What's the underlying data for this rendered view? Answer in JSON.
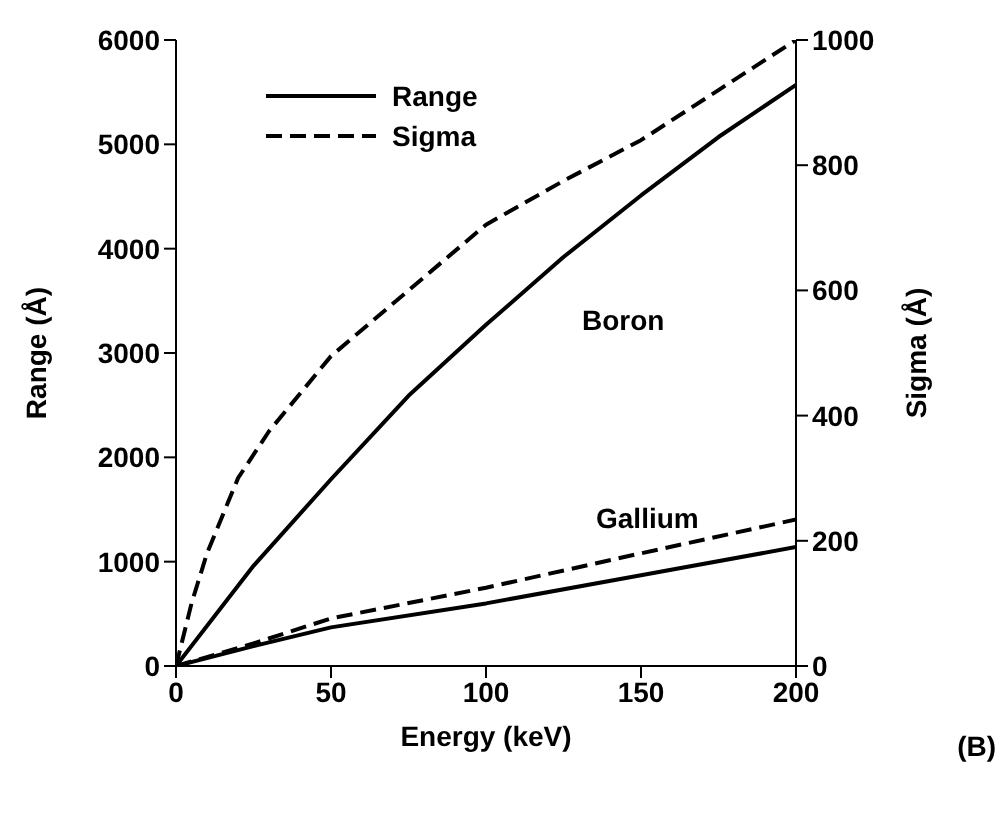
{
  "chart_data": {
    "type": "line",
    "xlabel": "Energy (keV)",
    "ylabel": "Range (Å)",
    "y2label": "Sigma (Å)",
    "xlim": [
      0,
      200
    ],
    "xticks": [
      0,
      50,
      100,
      150,
      200
    ],
    "ylim": [
      0,
      6000
    ],
    "yticks": [
      0,
      1000,
      2000,
      3000,
      4000,
      5000,
      6000
    ],
    "y2lim": [
      0,
      1000
    ],
    "y2ticks": [
      0,
      200,
      400,
      600,
      800,
      1000
    ],
    "grid": false,
    "legend": "top left",
    "marker": "none",
    "series": [
      {
        "name": "Range",
        "color": "#000000",
        "line_style": "solid",
        "x": [
          0,
          25,
          50,
          75,
          100,
          125,
          150,
          175,
          200
        ],
        "values": [
          0,
          960,
          1790,
          2590,
          3270,
          3920,
          4510,
          5070,
          5570
        ]
      },
      {
        "name": "Sigma",
        "color": "#000000",
        "line_style": "dashed",
        "axis": "y2",
        "x": [
          0,
          5,
          10,
          20,
          30,
          50,
          75,
          100,
          125,
          150,
          175,
          200
        ],
        "values": [
          0,
          100,
          180,
          300,
          375,
          495,
          600,
          705,
          775,
          840,
          920,
          1000
        ]
      },
      {
        "color": "#000000",
        "line_style": "solid",
        "x": [
          0,
          25,
          50,
          100,
          150,
          200
        ],
        "values": [
          0,
          190,
          370,
          600,
          870,
          1140
        ]
      },
      {
        "color": "#000000",
        "line_style": "dashed",
        "axis": "y2",
        "x": [
          0,
          25,
          50,
          100,
          150,
          200
        ],
        "values": [
          0,
          36,
          76,
          125,
          180,
          234
        ]
      }
    ],
    "annotations": [
      "Boron",
      "Gallium",
      "(B)"
    ]
  }
}
